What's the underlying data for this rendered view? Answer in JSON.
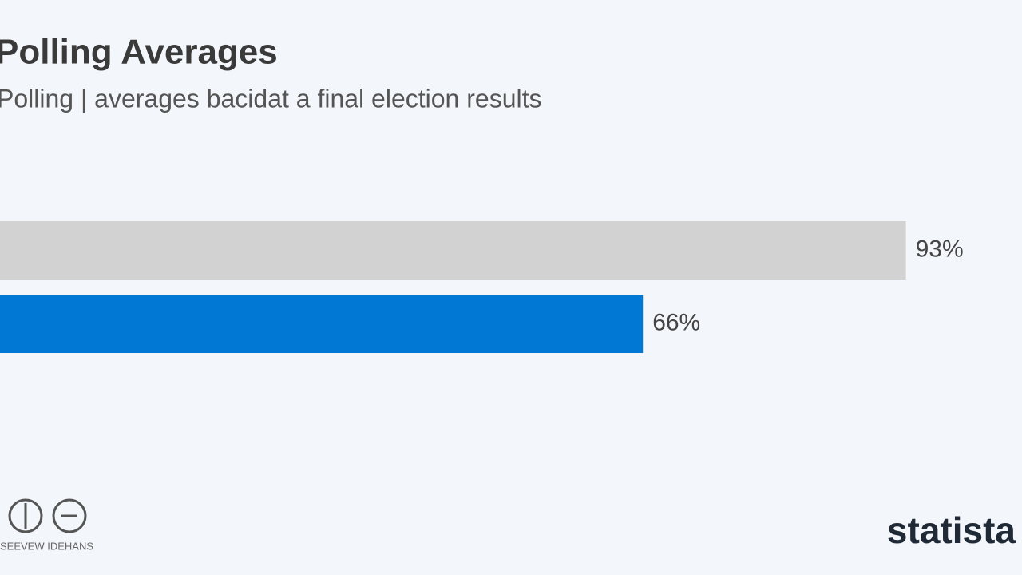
{
  "chart_data": {
    "type": "bar",
    "orientation": "horizontal",
    "title": "Polling Averages",
    "subtitle": "Polling | averages bacidat a final election results",
    "categories": [
      null,
      null
    ],
    "values": [
      93,
      66
    ],
    "value_labels": [
      "93%",
      "66%"
    ],
    "colors": [
      "#d2d2d2",
      "#0078d4"
    ],
    "xlim": [
      0,
      100
    ],
    "footer": "SEEVEW IDEHANS",
    "brand": "statista"
  }
}
